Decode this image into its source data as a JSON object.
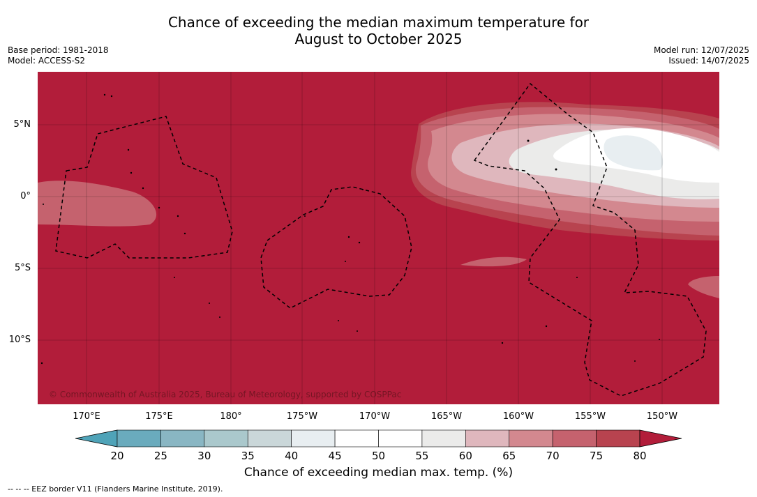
{
  "title": {
    "line1": "Chance of exceeding the median maximum temperature for",
    "line2": "August to October 2025"
  },
  "meta_left": {
    "base_period": "Base period: 1981-2018",
    "model": "Model: ACCESS-S2"
  },
  "meta_right": {
    "model_run": "Model run: 12/07/2025",
    "issued": "Issued: 14/07/2025"
  },
  "map": {
    "copyright": "© Commonwealth of Australia 2025, Bureau of Meteorology, supported by COSPPac",
    "longitude_labels": [
      "170°E",
      "175°E",
      "180°",
      "175°W",
      "170°W",
      "165°W",
      "160°W",
      "155°W",
      "150°W"
    ],
    "latitude_labels": [
      "5°N",
      "0°",
      "5°S",
      "10°S"
    ],
    "background_color": "#b21d3a"
  },
  "colorbar": {
    "tick_labels": [
      "20",
      "25",
      "30",
      "35",
      "40",
      "45",
      "50",
      "55",
      "60",
      "65",
      "70",
      "75",
      "80"
    ],
    "colors": [
      "#4fa3b8",
      "#6aabbd",
      "#89b6c3",
      "#aac8cc",
      "#cad7d9",
      "#e8eef1",
      "#ffffff",
      "#ffffff",
      "#ebebea",
      "#dfb7bd",
      "#d3888f",
      "#c5626e",
      "#b8434f",
      "#b21d3a"
    ],
    "title": "Chance of exceeding median max. temp. (%)"
  },
  "footnote": "--  --  -- EEZ border V11 (Flanders Marine Institute, 2019)."
}
